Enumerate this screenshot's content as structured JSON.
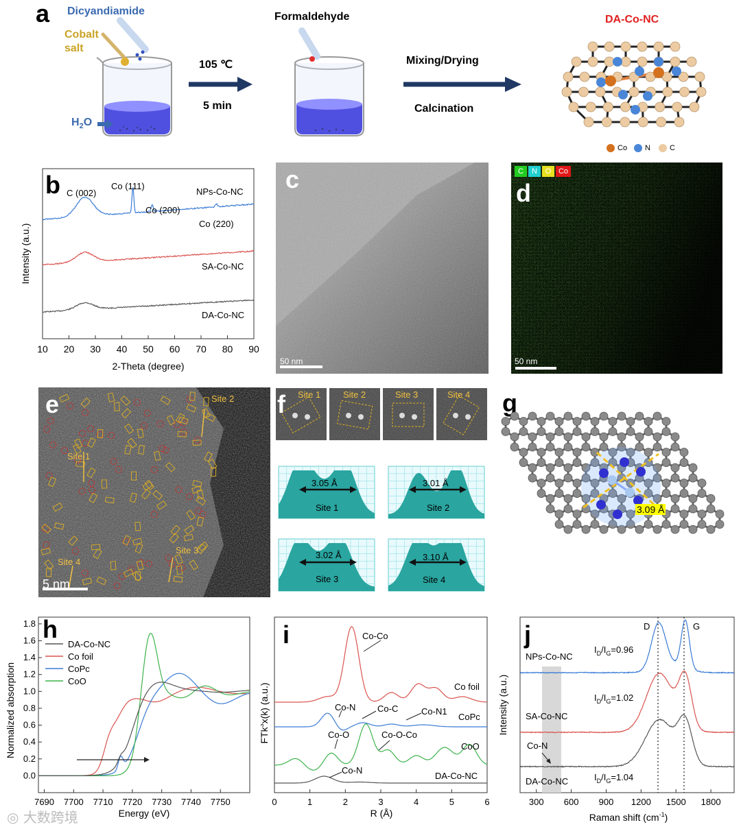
{
  "panel_labels": {
    "a": "a",
    "b": "b",
    "c": "c",
    "d": "d",
    "e": "e",
    "f": "f",
    "g": "g",
    "h": "h",
    "i": "i",
    "j": "j"
  },
  "panel_a": {
    "reagent_dicyandiamide": "Dicyandiamide",
    "reagent_cobalt": "Cobalt",
    "reagent_salt": "salt",
    "water_label": "H",
    "water_sub": "2",
    "water_tail": "O",
    "step1_top": "105 ℃",
    "step1_bottom": "5 min",
    "reagent_formaldehyde": "Formaldehyde",
    "step2_top": "Mixing/Drying",
    "step2_bottom": "Calcination",
    "product_title": "DA-Co-NC",
    "legend": [
      {
        "label": "Co",
        "color": "#d4711f"
      },
      {
        "label": "N",
        "color": "#4a86d8"
      },
      {
        "label": "C",
        "color": "#eccba2"
      }
    ]
  },
  "panel_c": {
    "scale_bar": "50 nm"
  },
  "panel_d": {
    "scale_bar": "50 nm",
    "chips": [
      {
        "label": "C",
        "color": "#22cc22"
      },
      {
        "label": "N",
        "color": "#22d0d0"
      },
      {
        "label": "O",
        "color": "#e8e020"
      },
      {
        "label": "Co",
        "color": "#e01818"
      }
    ]
  },
  "panel_e": {
    "scale_bar": "5 nm",
    "sites": [
      "Site 1",
      "Site 2",
      "Site 3",
      "Site 4"
    ]
  },
  "panel_f": {
    "sites": [
      "Site 1",
      "Site 2",
      "Site 3",
      "Site 4"
    ],
    "profile_distances": [
      "3.05 Å",
      "3.01 Å",
      "3.02 Å",
      "3.10 Å"
    ]
  },
  "panel_g": {
    "distance": "3.09 Å"
  },
  "chart_data": [
    {
      "panel": "b",
      "type": "line",
      "xlabel": "2-Theta (degree)",
      "ylabel": "Intensity (a.u.)",
      "xlim": [
        10,
        90
      ],
      "xticks": [
        10,
        20,
        30,
        40,
        50,
        60,
        70,
        80,
        90
      ],
      "series": [
        {
          "name": "NPs-Co-NC",
          "color": "#3a7bd5"
        },
        {
          "name": "SA-Co-NC",
          "color": "#d9534f"
        },
        {
          "name": "DA-Co-NC",
          "color": "#555555"
        }
      ],
      "annotations": [
        "C (002)",
        "Co (111)",
        "Co (200)",
        "Co (220)"
      ]
    },
    {
      "panel": "h",
      "type": "line",
      "xlabel": "Energy (eV)",
      "ylabel": "Normalized absorption",
      "xlim": [
        7688,
        7760
      ],
      "ylim": [
        -0.2,
        1.88
      ],
      "xticks": [
        7690,
        7700,
        7710,
        7720,
        7730,
        7740,
        7750
      ],
      "yticks": [
        "0.0",
        "0.2",
        "0.4",
        "0.6",
        "0.8",
        "1.0",
        "1.2",
        "1.4",
        "1.6",
        "1.8"
      ],
      "series": [
        {
          "name": "DA-Co-NC",
          "color": "#555555"
        },
        {
          "name": "Co foil",
          "color": "#d9534f"
        },
        {
          "name": "CoPc",
          "color": "#3a7bd5"
        },
        {
          "name": "CoO",
          "color": "#3cb34a"
        }
      ]
    },
    {
      "panel": "i",
      "type": "line",
      "xlabel": "R (Å)",
      "ylabel_main": "FTk",
      "ylabel_sup": "3",
      "ylabel_tail": "x(k) (a.u.)",
      "xlim": [
        0,
        6
      ],
      "xticks": [
        0,
        1,
        2,
        3,
        4,
        5,
        6
      ],
      "series": [
        {
          "name": "Co foil",
          "color": "#d9534f"
        },
        {
          "name": "CoPc",
          "color": "#3a7bd5"
        },
        {
          "name": "CoO",
          "color": "#3cb34a"
        },
        {
          "name": "DA-Co-NC",
          "color": "#555555"
        }
      ],
      "annotations": [
        "Co-Co",
        "Co-N",
        "Co-C",
        "Co-N1",
        "Co-O",
        "Co-O-Co",
        "Co-N"
      ]
    },
    {
      "panel": "j",
      "type": "line",
      "xlabel_main": "Raman shift (cm",
      "xlabel_sup": "-1",
      "xlabel_tail": ")",
      "ylabel": "Intensity (a.u.)",
      "xlim": [
        160,
        2000
      ],
      "xticks": [
        300,
        600,
        900,
        1200,
        1500,
        1800
      ],
      "series": [
        {
          "name": "NPs-Co-NC",
          "color": "#3a7bd5",
          "ratio": "0.96"
        },
        {
          "name": "SA-Co-NC",
          "color": "#d9534f",
          "ratio": "1.02"
        },
        {
          "name": "DA-Co-NC",
          "color": "#555555",
          "ratio": "1.04"
        }
      ],
      "peak_labels": [
        "D",
        "G"
      ],
      "ratio_prefix": "I",
      "ratio_sub_D": "D",
      "ratio_slash": "/I",
      "ratio_sub_G": "G",
      "ratio_eq": "=",
      "annotation": "Co-N"
    }
  ],
  "watermark": "大数跨境"
}
